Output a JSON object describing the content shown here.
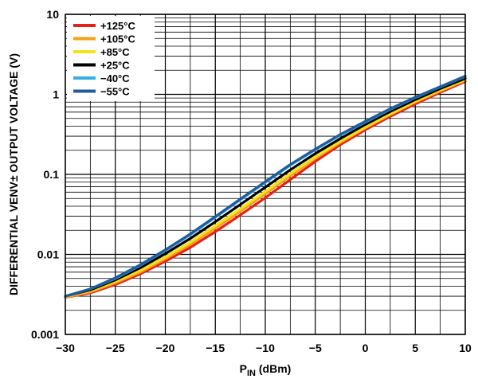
{
  "chart_data": {
    "type": "line",
    "xlabel": "P",
    "xlabel_sub": "IN",
    "xlabel_unit": " (dBm)",
    "ylabel": "DIFFERENTIAL VENV± OUTPUT VOLTAGE (V)",
    "xlim": [
      -30,
      10
    ],
    "ylim": [
      0.001,
      10
    ],
    "yscale": "log",
    "grid": true,
    "legend_position": "top-left",
    "x_ticks": [
      -30,
      -25,
      -20,
      -15,
      -10,
      -5,
      0,
      5,
      10
    ],
    "x_tick_labels": [
      "−30",
      "−25",
      "−20",
      "−15",
      "−10",
      "−5",
      "0",
      "5",
      "10"
    ],
    "y_ticks": [
      0.001,
      0.01,
      0.1,
      1,
      10
    ],
    "y_tick_labels": [
      "0.001",
      "0.01",
      "0.1",
      "1",
      "10"
    ],
    "x": [
      -30,
      -27.5,
      -25,
      -22.5,
      -20,
      -17.5,
      -15,
      -12.5,
      -10,
      -7.5,
      -5,
      -2.5,
      0,
      2.5,
      5,
      7.5,
      10
    ],
    "series": [
      {
        "name": "+125°C",
        "color": "#e8201a",
        "values": [
          0.0029,
          0.0033,
          0.0042,
          0.0057,
          0.0082,
          0.0122,
          0.0192,
          0.031,
          0.051,
          0.086,
          0.145,
          0.235,
          0.36,
          0.53,
          0.76,
          1.06,
          1.45
        ]
      },
      {
        "name": "+105°C",
        "color": "#f5a21b",
        "values": [
          0.0029,
          0.0034,
          0.0044,
          0.006,
          0.0088,
          0.0133,
          0.0212,
          0.0345,
          0.057,
          0.096,
          0.158,
          0.25,
          0.38,
          0.56,
          0.8,
          1.1,
          1.5
        ]
      },
      {
        "name": "+85°C",
        "color": "#f4e11c",
        "values": [
          0.003,
          0.0035,
          0.0046,
          0.0063,
          0.0093,
          0.0142,
          0.0228,
          0.037,
          0.061,
          0.102,
          0.166,
          0.26,
          0.39,
          0.57,
          0.82,
          1.13,
          1.52
        ]
      },
      {
        "name": "+25°C",
        "color": "#000000",
        "values": [
          0.003,
          0.0036,
          0.0048,
          0.0068,
          0.0102,
          0.0158,
          0.0255,
          0.042,
          0.069,
          0.114,
          0.182,
          0.28,
          0.42,
          0.61,
          0.86,
          1.18,
          1.58
        ]
      },
      {
        "name": "−40°C",
        "color": "#39aee6",
        "values": [
          0.003,
          0.0037,
          0.005,
          0.0073,
          0.0112,
          0.0176,
          0.029,
          0.048,
          0.079,
          0.13,
          0.203,
          0.31,
          0.45,
          0.65,
          0.91,
          1.24,
          1.67
        ]
      },
      {
        "name": "−55°C",
        "color": "#1f5c9e",
        "values": [
          0.003,
          0.0037,
          0.0051,
          0.0074,
          0.0114,
          0.018,
          0.0297,
          0.049,
          0.081,
          0.133,
          0.207,
          0.315,
          0.46,
          0.66,
          0.92,
          1.25,
          1.69
        ]
      }
    ]
  }
}
